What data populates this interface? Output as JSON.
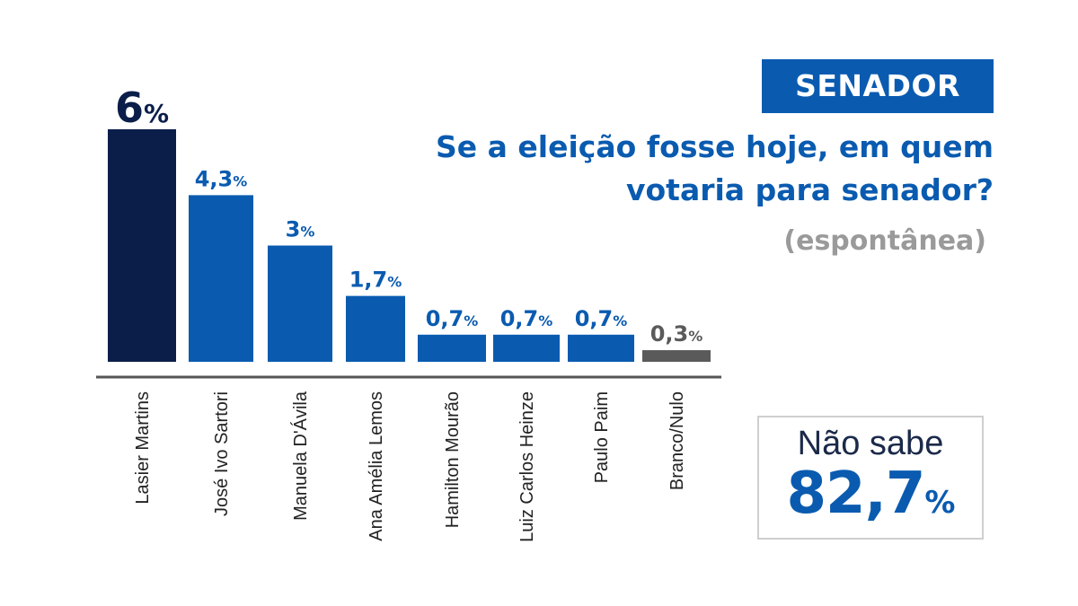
{
  "header": {
    "badge": "SENADOR",
    "question": "Se a eleição fosse hoje, em quem votaria para senador?",
    "note": "(espontânea)"
  },
  "dont_know": {
    "label": "Não sabe",
    "value": "82,7",
    "unit": "%"
  },
  "colors": {
    "leader": "#0b1e4a",
    "primary": "#0a5bb0",
    "neutral": "#5a5a5a",
    "axis": "#555555"
  },
  "chart_data": {
    "type": "bar",
    "title": "",
    "xlabel": "",
    "ylabel": "",
    "ylim": [
      0,
      6
    ],
    "grid": false,
    "legend": "none",
    "categories": [
      "Lasier Martins",
      "José Ivo Sartori",
      "Manuela D'Ávila",
      "Ana Amélia Lemos",
      "Hamilton Mourão",
      "Luiz Carlos Heinze",
      "Paulo Paim",
      "Branco/Nulo"
    ],
    "values": [
      6,
      4.3,
      3,
      1.7,
      0.7,
      0.7,
      0.7,
      0.3
    ],
    "value_labels": [
      "6",
      "4,3",
      "3",
      "1,7",
      "0,7",
      "0,7",
      "0,7",
      "0,3"
    ],
    "unit": "%",
    "bar_colors": [
      "#0b1e4a",
      "#0a5bb0",
      "#0a5bb0",
      "#0a5bb0",
      "#0a5bb0",
      "#0a5bb0",
      "#0a5bb0",
      "#5a5a5a"
    ]
  }
}
